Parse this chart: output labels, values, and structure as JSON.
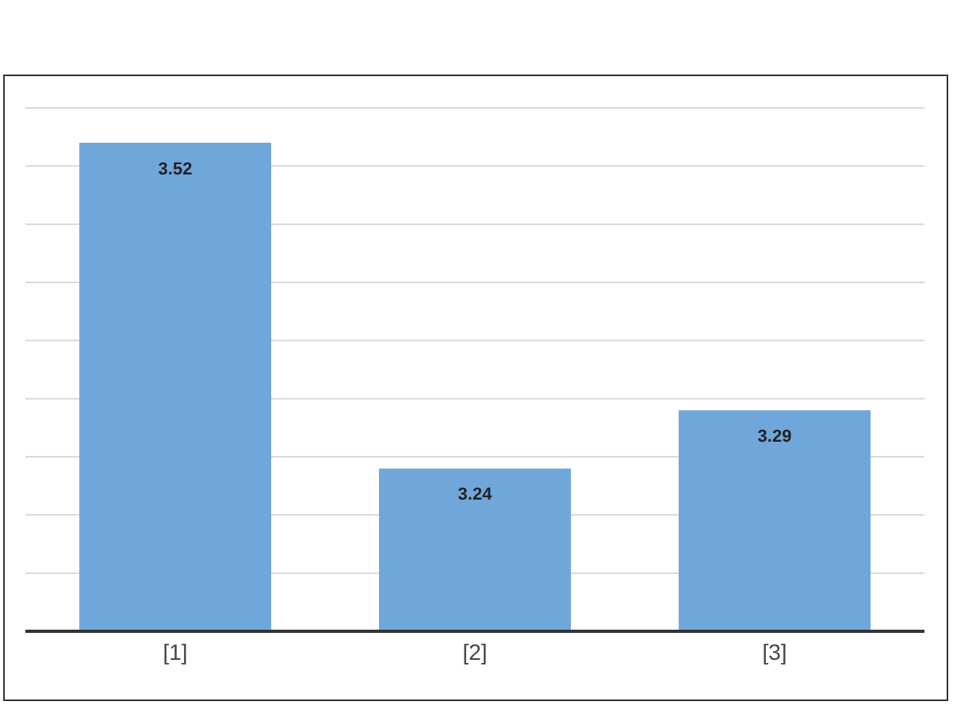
{
  "chart_data": {
    "type": "bar",
    "categories": [
      "[1]",
      "[2]",
      "[3]"
    ],
    "values": [
      3.52,
      3.24,
      3.29
    ],
    "color": "#70a7db",
    "data_labels": true,
    "ylim": [
      3.1,
      3.55
    ],
    "yticks": [
      {
        "value": 3.1,
        "label": null
      },
      {
        "value": 3.15,
        "label": null
      },
      {
        "value": 3.2,
        "label": null
      },
      {
        "value": 3.25,
        "label": null
      },
      {
        "value": 3.3,
        "label": null
      },
      {
        "value": 3.35,
        "label": null
      },
      {
        "value": 3.4,
        "label": null
      },
      {
        "value": 3.45,
        "label": null
      },
      {
        "value": 3.5,
        "label": null
      },
      {
        "value": 3.55,
        "label": null
      }
    ],
    "grid": "y",
    "tick_labels": "x"
  }
}
